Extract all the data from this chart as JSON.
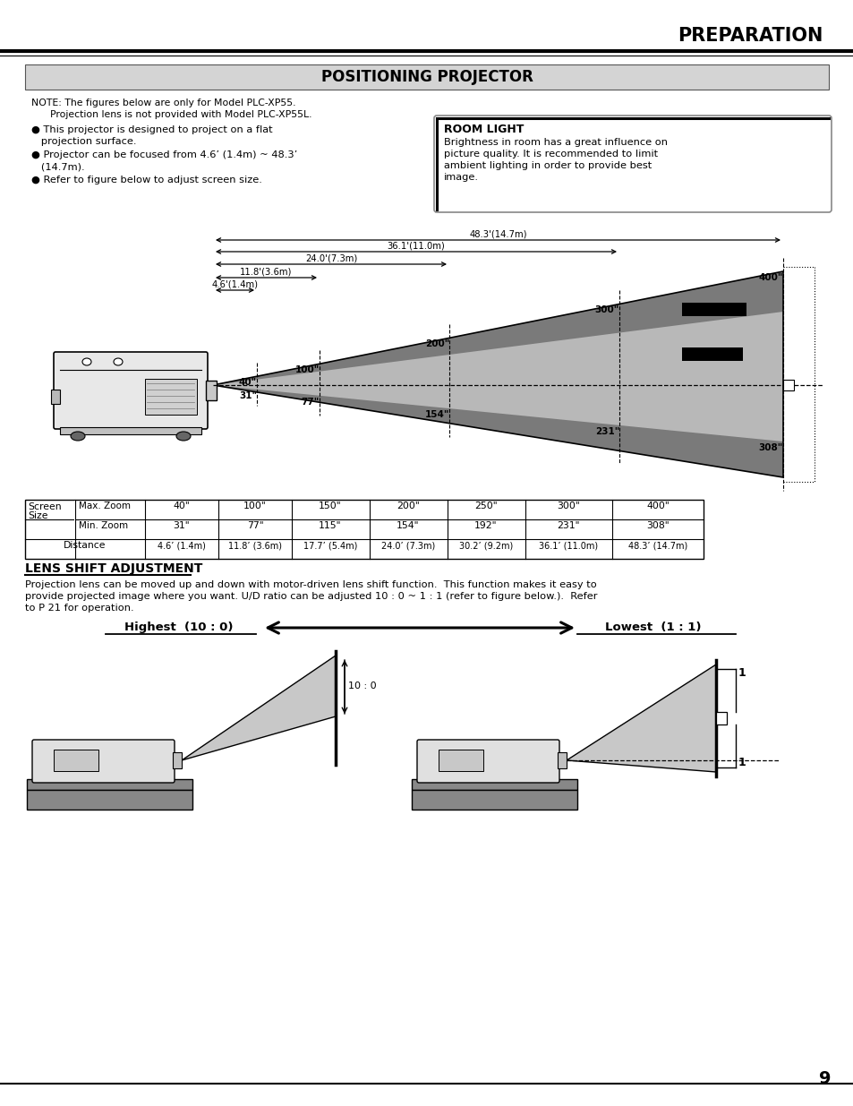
{
  "page_title": "PREPARATION",
  "section_title": "POSITIONING PROJECTOR",
  "note_line1": "NOTE: The figures below are only for Model PLC-XP55.",
  "note_line2": "      Projection lens is not provided with Model PLC-XP55L.",
  "bullet1a": "● This projector is designed to project on a flat",
  "bullet1b": "   projection surface.",
  "bullet2a": "● Projector can be focused from 4.6’ (1.4m) ~ 48.3’",
  "bullet2b": "   (14.7m).",
  "bullet3": "● Refer to figure below to adjust screen size.",
  "room_light_title": "ROOM LIGHT",
  "room_light_lines": [
    "Brightness in room has a great influence on",
    "picture quality. It is recommended to limit",
    "ambient lighting in order to provide best",
    "image."
  ],
  "table_row1": [
    "40\"",
    "100\"",
    "150\"",
    "200\"",
    "250\"",
    "300\"",
    "400\""
  ],
  "table_row2": [
    "31\"",
    "77\"",
    "115\"",
    "154\"",
    "192\"",
    "231\"",
    "308\""
  ],
  "table_row3": [
    "4.6’ (1.4m)",
    "11.8’ (3.6m)",
    "17.7’ (5.4m)",
    "24.0’ (7.3m)",
    "30.2’ (9.2m)",
    "36.1’ (11.0m)",
    "48.3’ (14.7m)"
  ],
  "lens_shift_title": "LENS SHIFT ADJUSTMENT",
  "lens_shift_text": [
    "Projection lens can be moved up and down with motor-driven lens shift function.  This function makes it easy to",
    "provide projected image where you want. U/D ratio can be adjusted 10 : 0 ~ 1 : 1 (refer to figure below.).  Refer",
    "to P 21 for operation."
  ],
  "highest_label": "Highest  (10 : 0)",
  "lowest_label": "Lowest  (1 : 1)",
  "page_number": "9"
}
